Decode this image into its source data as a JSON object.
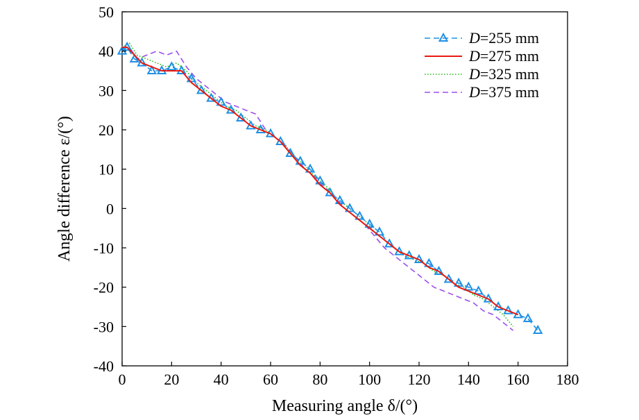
{
  "chart_data": {
    "type": "line",
    "title": "",
    "xlabel": "Measuring angle δ/(°)",
    "ylabel": "Angle difference ε/(°)",
    "xlim": [
      0,
      180
    ],
    "ylim": [
      -40,
      50
    ],
    "x_ticks": [
      "0",
      "20",
      "40",
      "60",
      "80",
      "100",
      "120",
      "140",
      "160",
      "180"
    ],
    "y_ticks": [
      "50",
      "40",
      "30",
      "20",
      "10",
      "0",
      "-10",
      "-20",
      "-30",
      "-40"
    ],
    "grid": false,
    "legend_position": "top-right",
    "series": [
      {
        "name": "D=255 mm",
        "color": "#1e90e6",
        "line_style": "dashed",
        "marker": "triangle",
        "x": [
          0,
          2,
          5,
          8,
          12,
          16,
          20,
          24,
          28,
          32,
          36,
          40,
          44,
          48,
          52,
          56,
          60,
          64,
          68,
          72,
          76,
          80,
          84,
          88,
          92,
          96,
          100,
          104,
          108,
          112,
          116,
          120,
          124,
          128,
          132,
          136,
          140,
          144,
          148,
          152,
          156,
          160,
          164,
          168
        ],
        "y": [
          40,
          41,
          38,
          37,
          35,
          35,
          36,
          35,
          33,
          30,
          28,
          27,
          25,
          23,
          21,
          20,
          19,
          17,
          14,
          12,
          10,
          7,
          4,
          2,
          0,
          -2,
          -4,
          -6,
          -9,
          -11,
          -12,
          -13,
          -14,
          -16,
          -18,
          -19,
          -20,
          -21,
          -23,
          -25,
          -26,
          -27,
          -28,
          -31
        ]
      },
      {
        "name": "D=275 mm",
        "color": "#e8190f",
        "line_style": "solid",
        "marker": "none",
        "x": [
          0,
          2,
          5,
          8,
          12,
          16,
          20,
          24,
          28,
          32,
          36,
          40,
          44,
          48,
          52,
          56,
          60,
          64,
          68,
          72,
          76,
          80,
          84,
          88,
          92,
          96,
          100,
          104,
          108,
          112,
          116,
          120,
          124,
          128,
          132,
          136,
          140,
          144,
          148,
          152,
          156,
          160
        ],
        "y": [
          41,
          41,
          39,
          37,
          36,
          35,
          35,
          35,
          32,
          30,
          28,
          26,
          25,
          23,
          21,
          20,
          19,
          17,
          14,
          11,
          9,
          6,
          4,
          1,
          -1,
          -3,
          -5,
          -7,
          -9,
          -11,
          -12,
          -13,
          -15,
          -16,
          -18,
          -20,
          -21,
          -22,
          -23,
          -25,
          -26,
          -27
        ]
      },
      {
        "name": "D=325 mm",
        "color": "#22b814",
        "line_style": "dotted",
        "marker": "none",
        "x": [
          0,
          3,
          6,
          10,
          14,
          18,
          22,
          26,
          30,
          34,
          38,
          42,
          46,
          50,
          54,
          58,
          62,
          66,
          70,
          74,
          78,
          82,
          86,
          90,
          94,
          98,
          102,
          106,
          110,
          114,
          118,
          122,
          126,
          130,
          134,
          138,
          142,
          146,
          150,
          154,
          158
        ],
        "y": [
          41,
          42,
          39,
          38,
          37,
          36,
          37,
          35,
          32,
          30,
          28,
          26,
          25,
          23,
          21,
          20,
          18,
          16,
          13,
          11,
          8,
          6,
          3,
          1,
          -1,
          -3,
          -6,
          -8,
          -10,
          -12,
          -13,
          -14,
          -16,
          -17,
          -19,
          -20,
          -22,
          -23,
          -25,
          -27,
          -30
        ]
      },
      {
        "name": "D=375 mm",
        "color": "#9b4dee",
        "line_style": "dashed",
        "marker": "none",
        "x": [
          0,
          3,
          6,
          10,
          14,
          18,
          22,
          26,
          30,
          34,
          38,
          42,
          46,
          50,
          54,
          58,
          62,
          66,
          70,
          74,
          78,
          82,
          86,
          90,
          94,
          98,
          102,
          106,
          110,
          114,
          118,
          122,
          126,
          130,
          134,
          138,
          142,
          146,
          150,
          154,
          158
        ],
        "y": [
          41,
          41,
          38,
          39,
          40,
          39,
          40,
          36,
          33,
          31,
          29,
          27,
          26,
          25,
          24,
          20,
          18,
          16,
          13,
          10,
          8,
          5,
          3,
          0,
          -2,
          -4,
          -7,
          -10,
          -12,
          -14,
          -16,
          -18,
          -20,
          -21,
          -22,
          -23,
          -24,
          -26,
          -27,
          -29,
          -31
        ]
      }
    ]
  }
}
